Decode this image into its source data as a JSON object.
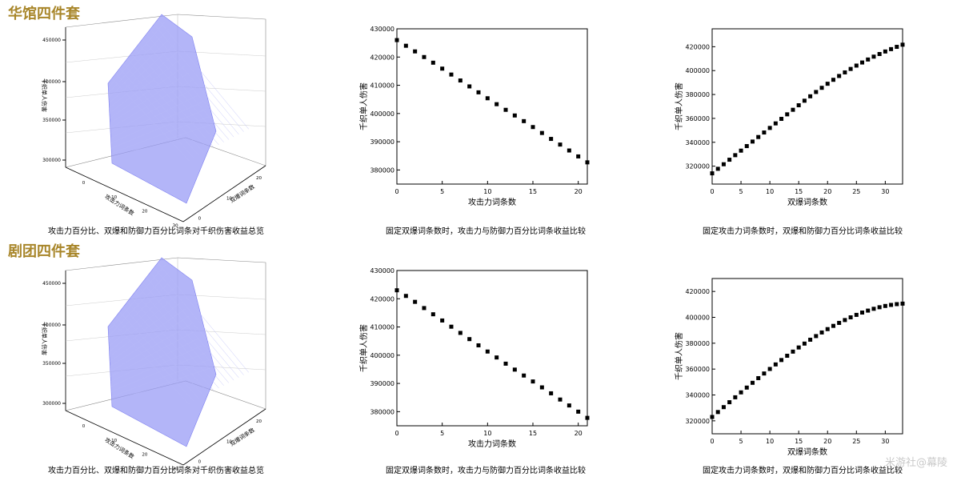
{
  "sections": [
    {
      "title": "华馆四件套",
      "captions": [
        "攻击力百分比、双爆和防御力百分比词条对千织伤害收益总览",
        "固定双爆词条数时，攻击力与防御力百分比词条收益比较",
        "固定攻击力词条数时，双爆和防御力百分比词条收益比较"
      ],
      "surface_labels": {
        "z": "千织单人伤害",
        "x": "攻击力词条数",
        "y": "双爆词条数"
      }
    },
    {
      "title": "剧团四件套",
      "captions": [
        "攻击力百分比、双爆和防御力百分比词条对千织伤害收益总览",
        "固定双爆词条数时，攻击力与防御力百分比词条收益比较",
        "固定攻击力词条数时，双爆和防御力百分比词条收益比较"
      ],
      "surface_labels": {
        "z": "千织单人伤害",
        "x": "攻击力词条数",
        "y": "双爆词条数"
      }
    }
  ],
  "watermark": "米游社@幕陵",
  "chart_data": [
    {
      "type": "surface",
      "zticks": [
        "300000",
        "350000",
        "400000",
        "450000"
      ],
      "xticks": [
        "0",
        "10",
        "20",
        "30"
      ],
      "yticks": [
        "0",
        "10",
        "20"
      ],
      "color": "#9a9cf5"
    },
    {
      "type": "scatter",
      "xlabel": "攻击力词条数",
      "ylabel": "千织单人伤害",
      "xlim": [
        0,
        21
      ],
      "ylim": [
        375000,
        430000
      ],
      "xticks": [
        0,
        5,
        10,
        15,
        20
      ],
      "yticks": [
        380000,
        390000,
        400000,
        410000,
        420000,
        430000
      ],
      "x": [
        0,
        1,
        2,
        3,
        4,
        5,
        6,
        7,
        8,
        9,
        10,
        11,
        12,
        13,
        14,
        15,
        16,
        17,
        18,
        19,
        20,
        21
      ],
      "y": [
        426000,
        424000,
        422000,
        420000,
        418000,
        415900,
        413800,
        411700,
        409600,
        407500,
        405400,
        403300,
        401300,
        399300,
        397300,
        395200,
        393100,
        391000,
        389000,
        386900,
        384800,
        382700
      ]
    },
    {
      "type": "scatter",
      "xlabel": "双爆词条数",
      "ylabel": "千织单人伤害",
      "xlim": [
        0,
        33
      ],
      "ylim": [
        305000,
        435000
      ],
      "xticks": [
        0,
        5,
        10,
        15,
        20,
        25,
        30
      ],
      "yticks": [
        320000,
        340000,
        360000,
        380000,
        400000,
        420000
      ],
      "x": [
        0,
        1,
        2,
        3,
        4,
        5,
        6,
        7,
        8,
        9,
        10,
        11,
        12,
        13,
        14,
        15,
        16,
        17,
        18,
        19,
        20,
        21,
        22,
        23,
        24,
        25,
        26,
        27,
        28,
        29,
        30,
        31,
        32,
        33
      ],
      "y": [
        314000,
        317800,
        321600,
        325400,
        329200,
        333000,
        336800,
        340600,
        344400,
        348200,
        352000,
        355800,
        359600,
        363400,
        367200,
        371000,
        374800,
        378500,
        382100,
        385600,
        389000,
        392300,
        395500,
        398500,
        401400,
        404200,
        406800,
        409300,
        411700,
        413900,
        416000,
        418000,
        419900,
        421700
      ]
    },
    {
      "type": "surface",
      "zticks": [
        "300000",
        "350000",
        "400000",
        "450000"
      ],
      "xticks": [
        "0",
        "10",
        "20",
        "30"
      ],
      "yticks": [
        "0",
        "10",
        "20"
      ],
      "color": "#9a9cf5"
    },
    {
      "type": "scatter",
      "xlabel": "攻击力词条数",
      "ylabel": "千织单人伤害",
      "xlim": [
        0,
        21
      ],
      "ylim": [
        375000,
        430000
      ],
      "xticks": [
        0,
        5,
        10,
        15,
        20
      ],
      "yticks": [
        380000,
        390000,
        400000,
        410000,
        420000,
        430000
      ],
      "x": [
        0,
        1,
        2,
        3,
        4,
        5,
        6,
        7,
        8,
        9,
        10,
        11,
        12,
        13,
        14,
        15,
        16,
        17,
        18,
        19,
        20,
        21
      ],
      "y": [
        423000,
        421000,
        418900,
        416700,
        414500,
        412300,
        410100,
        407900,
        405700,
        403500,
        401300,
        399200,
        397000,
        394900,
        392800,
        390700,
        388600,
        386500,
        384300,
        382200,
        380000,
        377800
      ]
    },
    {
      "type": "scatter",
      "xlabel": "双爆词条数",
      "ylabel": "千织单人伤害",
      "xlim": [
        0,
        33
      ],
      "ylim": [
        310000,
        430000
      ],
      "xticks": [
        0,
        5,
        10,
        15,
        20,
        25,
        30
      ],
      "yticks": [
        320000,
        340000,
        360000,
        380000,
        400000,
        420000
      ],
      "x": [
        0,
        1,
        2,
        3,
        4,
        5,
        6,
        7,
        8,
        9,
        10,
        11,
        12,
        13,
        14,
        15,
        16,
        17,
        18,
        19,
        20,
        21,
        22,
        23,
        24,
        25,
        26,
        27,
        28,
        29,
        30,
        31,
        32,
        33
      ],
      "y": [
        323000,
        326800,
        330600,
        334400,
        338200,
        342000,
        345700,
        349400,
        353000,
        356600,
        360100,
        363600,
        367000,
        370300,
        373500,
        376700,
        379700,
        382700,
        385500,
        388300,
        390900,
        393400,
        395700,
        397900,
        400000,
        401900,
        403700,
        405200,
        406600,
        407800,
        408800,
        409600,
        410200,
        410600
      ]
    }
  ]
}
